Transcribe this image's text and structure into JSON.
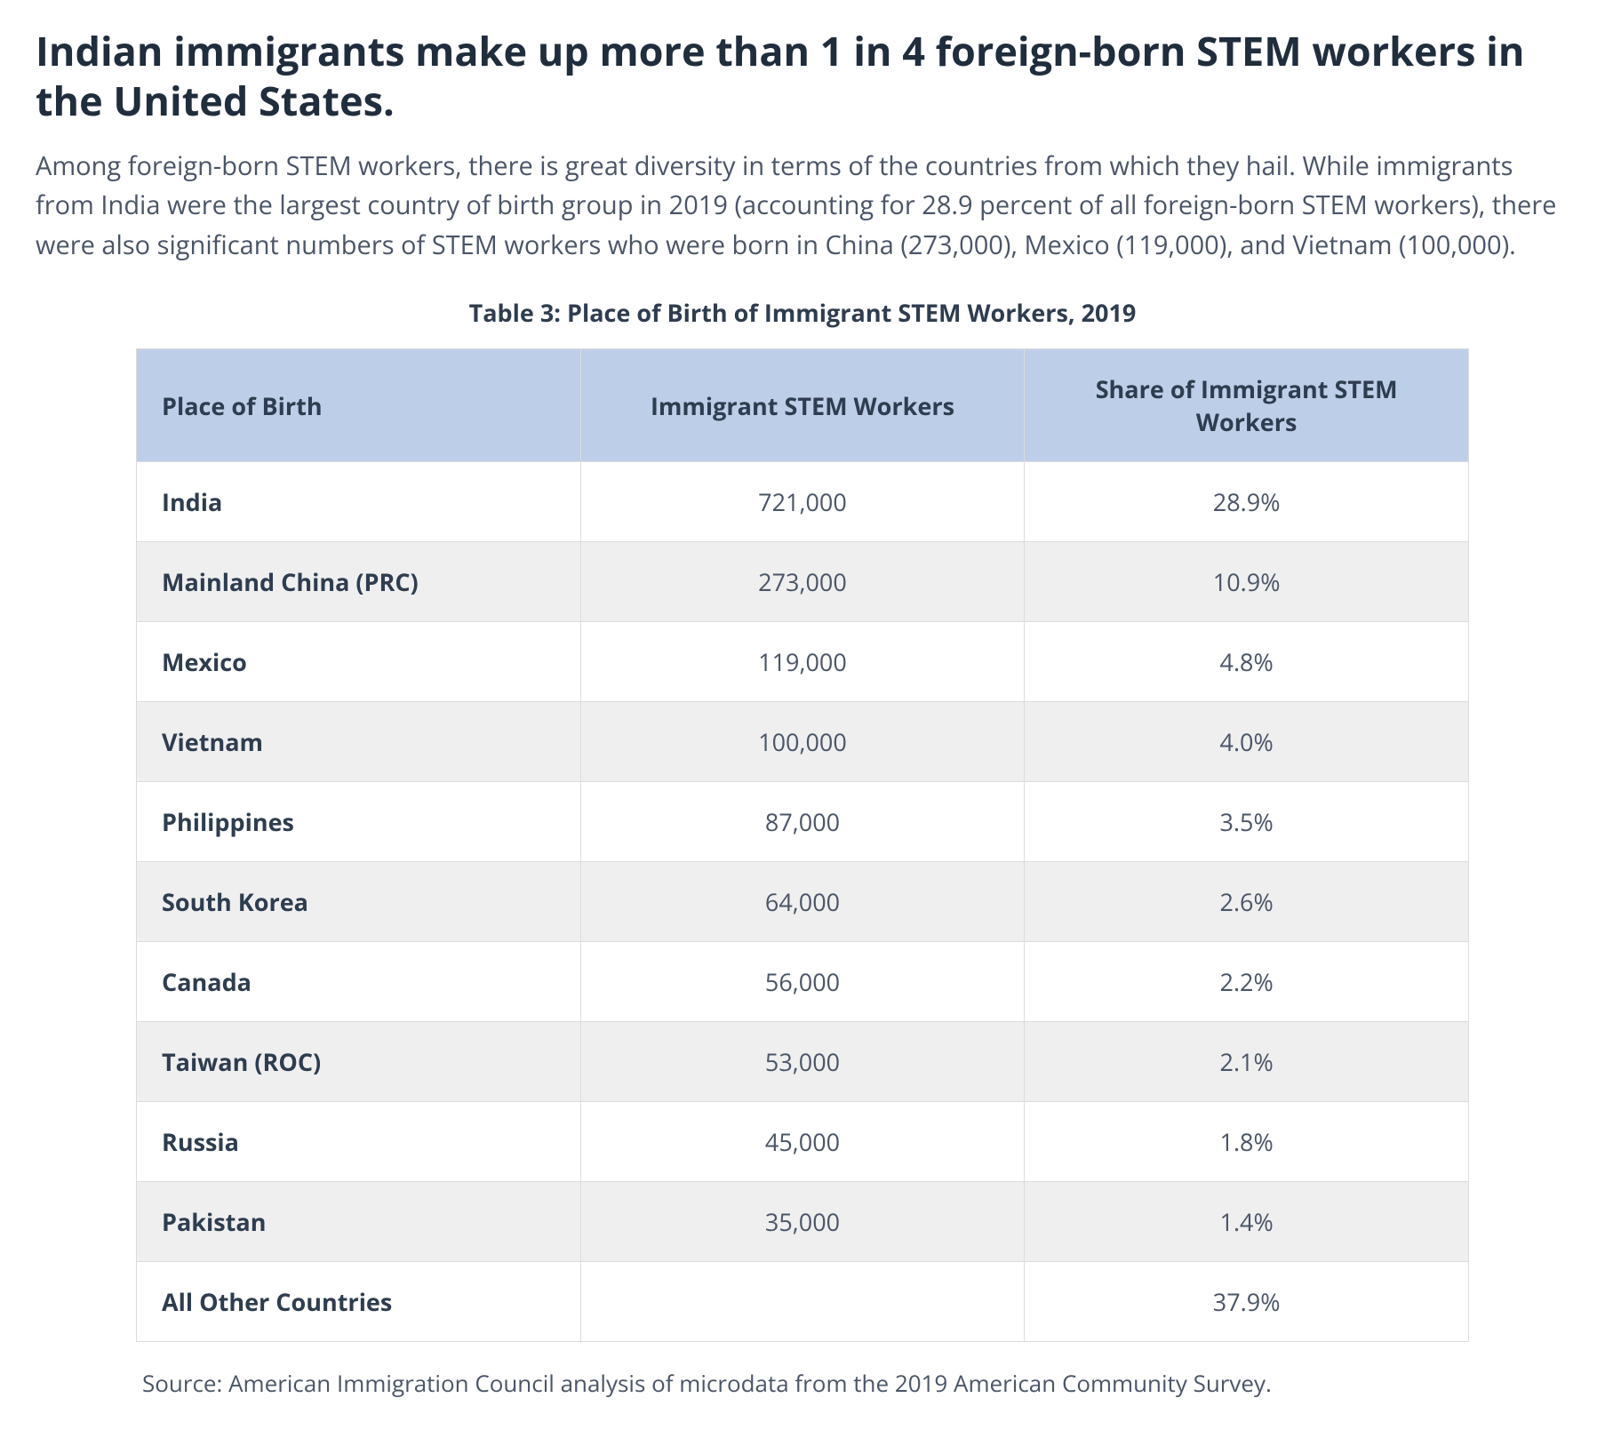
{
  "headline": "Indian immigrants make up more than 1 in 4 foreign-born STEM workers in the United States.",
  "lede": "Among foreign-born STEM workers, there is great diversity in terms of the countries from which they hail. While immigrants from India were the largest country of birth group in 2019 (accounting for 28.9 percent of all foreign-born STEM workers), there were also significant numbers of STEM workers who were born in China (273,000), Mexico (119,000), and Vietnam (100,000).",
  "table": {
    "type": "table",
    "caption": "Table 3: Place of Birth of Immigrant STEM Workers, 2019",
    "columns": [
      "Place of Birth",
      "Immigrant STEM Workers",
      "Share of Immigrant STEM Workers"
    ],
    "column_align": [
      "left",
      "center",
      "center"
    ],
    "header_bg": "#bdcee8",
    "border_color": "#dcdcdc",
    "row_stripe_bg": "#efefef",
    "row_plain_bg": "#ffffff",
    "text_color": "#2e3d4f",
    "body_text_color": "#4a5568",
    "caption_fontsize": 27,
    "cell_fontsize": 27,
    "rows": [
      {
        "place": "India",
        "workers": "721,000",
        "share": "28.9%"
      },
      {
        "place": "Mainland China (PRC)",
        "workers": "273,000",
        "share": "10.9%"
      },
      {
        "place": "Mexico",
        "workers": "119,000",
        "share": "4.8%"
      },
      {
        "place": "Vietnam",
        "workers": "100,000",
        "share": "4.0%"
      },
      {
        "place": "Philippines",
        "workers": "87,000",
        "share": "3.5%"
      },
      {
        "place": "South Korea",
        "workers": "64,000",
        "share": "2.6%"
      },
      {
        "place": "Canada",
        "workers": "56,000",
        "share": "2.2%"
      },
      {
        "place": "Taiwan (ROC)",
        "workers": "53,000",
        "share": "2.1%"
      },
      {
        "place": "Russia",
        "workers": "45,000",
        "share": "1.8%"
      },
      {
        "place": "Pakistan",
        "workers": "35,000",
        "share": "1.4%"
      },
      {
        "place": "All Other Countries",
        "workers": "",
        "share": "37.9%"
      }
    ]
  },
  "source": "Source: American Immigration Council analysis of microdata from the 2019 American Community Survey.",
  "colors": {
    "headline": "#1f2d3d",
    "body": "#4a5568",
    "background": "#ffffff"
  }
}
